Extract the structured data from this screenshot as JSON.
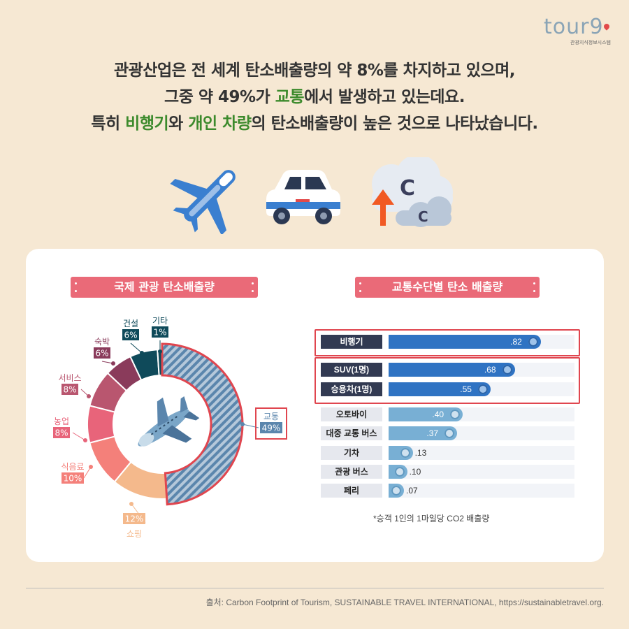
{
  "logo": {
    "text": "tour9",
    "subtitle": "관광지식정보시스템"
  },
  "headline": {
    "l1": "관광산업은 전 세계 탄소배출량의 약 8%를 차지하고 있으며,",
    "l2a": "그중 약 49%가 ",
    "l2b": "교통",
    "l2c": "에서 발생하고 있는데요.",
    "l3a": "특히 ",
    "l3b": "비행기",
    "l3c": "와 ",
    "l3d": "개인 차량",
    "l3e": "의 탄소배출량이 높은 것으로 나타났습니다."
  },
  "cloud_letters": {
    "big": "C",
    "small": "C"
  },
  "colors": {
    "background": "#f6e8d3",
    "pill": "#ea6a78",
    "highlight": "#3c8a2c",
    "bar_dark": "#2f73c3",
    "bar_light": "#78afd4",
    "frame": "#e0464f"
  },
  "chart_data": [
    {
      "type": "pie",
      "title": "국제 관광 탄소배출량",
      "slices": [
        {
          "label": "교통",
          "value": 49,
          "display": "49%",
          "color": "#5b86ad"
        },
        {
          "label": "쇼핑",
          "value": 12,
          "display": "12%",
          "color": "#f4b98c"
        },
        {
          "label": "식음료",
          "value": 10,
          "display": "10%",
          "color": "#f4807a"
        },
        {
          "label": "농업",
          "value": 8,
          "display": "8%",
          "color": "#e8647a"
        },
        {
          "label": "서비스",
          "value": 8,
          "display": "8%",
          "color": "#b9566f"
        },
        {
          "label": "숙박",
          "value": 6,
          "display": "6%",
          "color": "#8a3b5b"
        },
        {
          "label": "건설",
          "value": 6,
          "display": "6%",
          "color": "#0f4a5a"
        },
        {
          "label": "기타",
          "value": 1,
          "display": "1%",
          "color": "#0f4a5a"
        }
      ]
    },
    {
      "type": "bar",
      "title": "교통수단별 탄소 배출량",
      "categories": [
        "비행기",
        "SUV(1명)",
        "승용차(1명)",
        "오토바이",
        "대중 교통 버스",
        "기차",
        "관광 버스",
        "페리"
      ],
      "values": [
        0.82,
        0.68,
        0.55,
        0.4,
        0.37,
        0.13,
        0.1,
        0.07
      ],
      "value_labels": [
        ".82",
        ".68",
        ".55",
        ".40",
        ".37",
        ".13",
        ".10",
        ".07"
      ],
      "highlighted": [
        "비행기",
        "SUV(1명)",
        "승용차(1명)"
      ],
      "note": "*승객 1인의 1마일당 CO2 배출량"
    }
  ],
  "source": "출처: Carbon Footprint of Tourism, SUSTAINABLE TRAVEL INTERNATIONAL, https://sustainabletravel.org."
}
